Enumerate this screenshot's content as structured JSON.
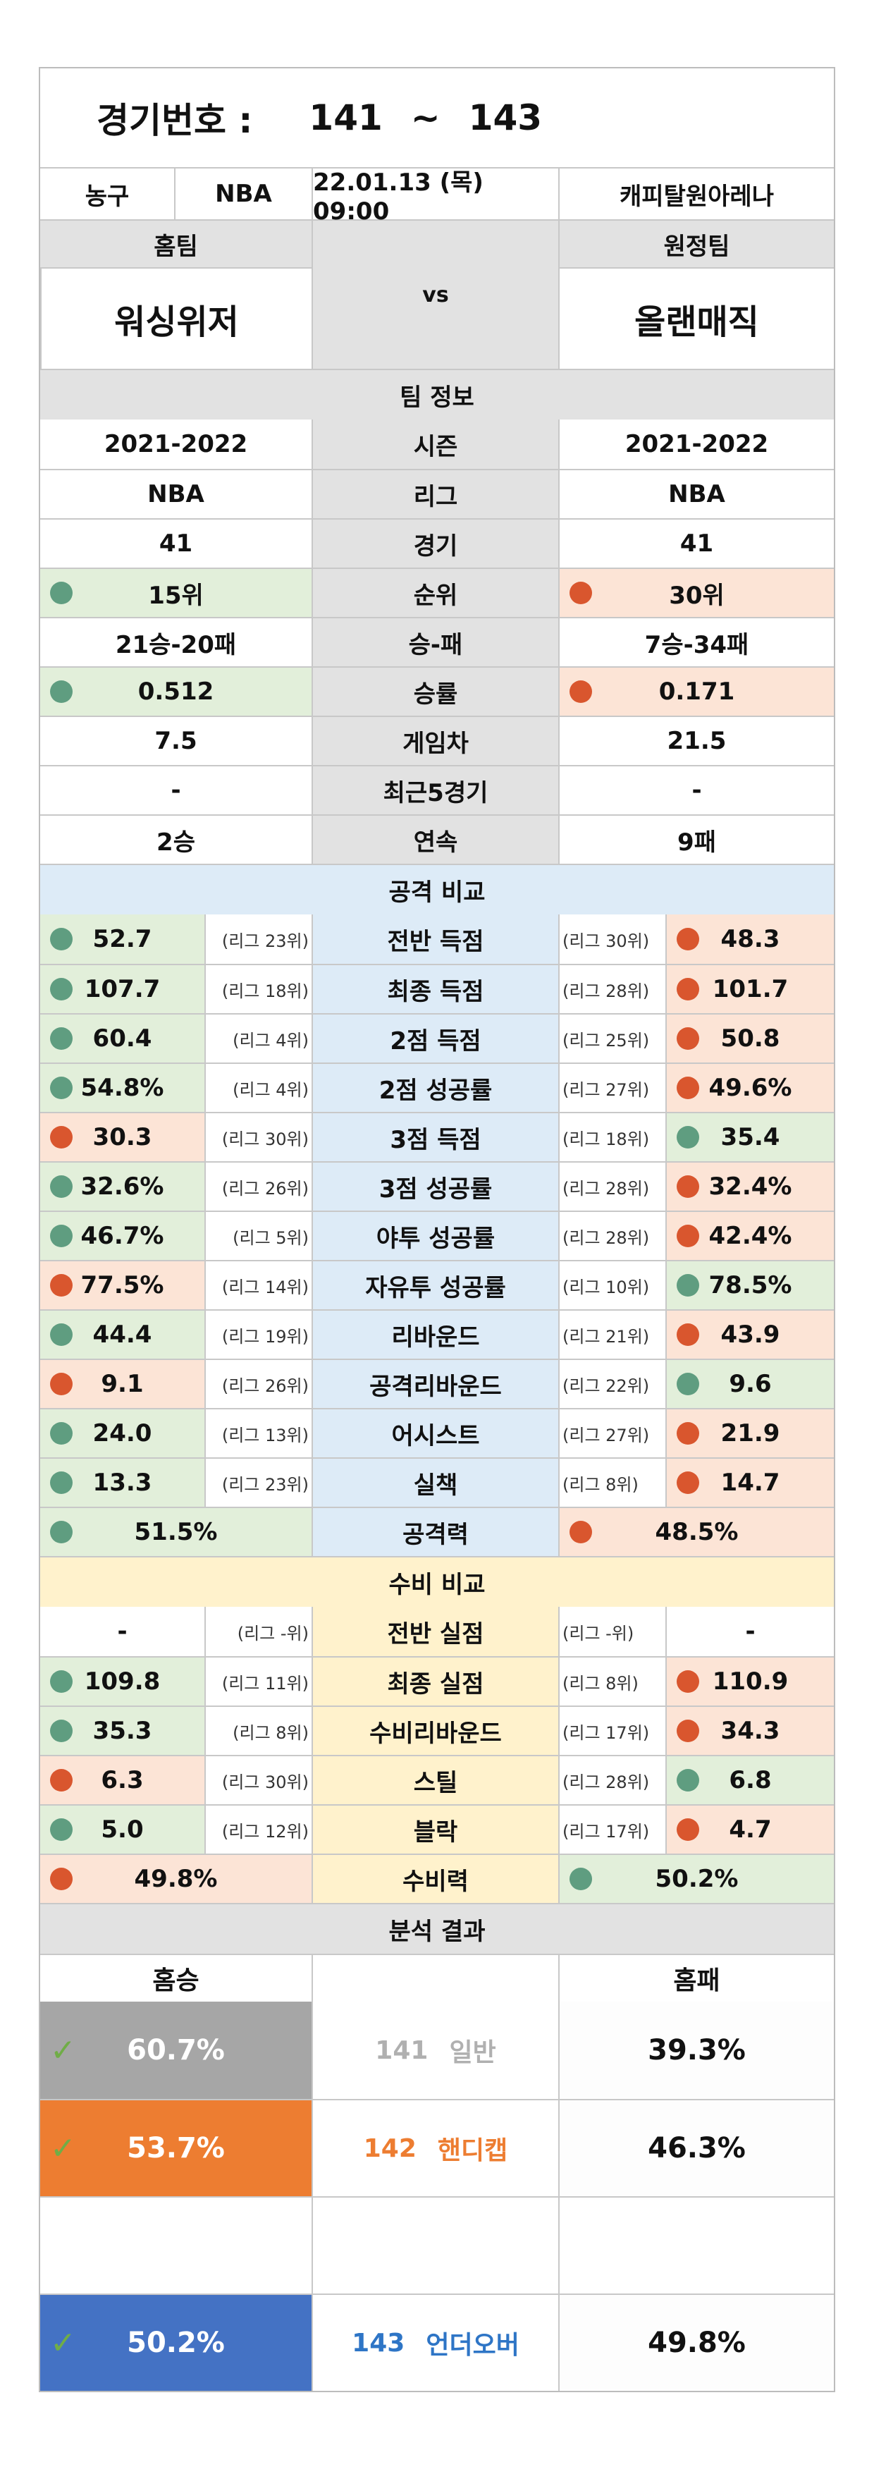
{
  "header": {
    "label": "경기번호 :",
    "from": "141",
    "tilde": "~",
    "to": "143"
  },
  "info": {
    "sport": "농구",
    "league": "NBA",
    "datetime": "22.01.13 (목) 09:00",
    "venue": "캐피탈원아레나"
  },
  "teams": {
    "home_label": "홈팀",
    "away_label": "원정팀",
    "home": "워싱위저",
    "away": "올랜매직",
    "vs": "vs"
  },
  "team_info": {
    "title": "팀 정보",
    "rows": [
      {
        "label": "시즌",
        "home": "2021-2022",
        "away": "2021-2022",
        "hc": "",
        "ac": ""
      },
      {
        "label": "리그",
        "home": "NBA",
        "away": "NBA",
        "hc": "",
        "ac": ""
      },
      {
        "label": "경기",
        "home": "41",
        "away": "41",
        "hc": "",
        "ac": ""
      },
      {
        "label": "순위",
        "home": "15위",
        "away": "30위",
        "hc": "green",
        "ac": "red"
      },
      {
        "label": "승-패",
        "home": "21승-20패",
        "away": "7승-34패",
        "hc": "",
        "ac": ""
      },
      {
        "label": "승률",
        "home": "0.512",
        "away": "0.171",
        "hc": "green",
        "ac": "red"
      },
      {
        "label": "게임차",
        "home": "7.5",
        "away": "21.5",
        "hc": "",
        "ac": ""
      },
      {
        "label": "최근5경기",
        "home": "-",
        "away": "-",
        "hc": "",
        "ac": ""
      },
      {
        "label": "연속",
        "home": "2승",
        "away": "9패",
        "hc": "",
        "ac": ""
      }
    ]
  },
  "attack": {
    "title": "공격 비교",
    "rows": [
      {
        "label": "전반 득점",
        "home": "52.7",
        "home_rank": "(리그 23위)",
        "away": "48.3",
        "away_rank": "(리그 30위)",
        "hc": "green",
        "ac": "red"
      },
      {
        "label": "최종 득점",
        "home": "107.7",
        "home_rank": "(리그 18위)",
        "away": "101.7",
        "away_rank": "(리그 28위)",
        "hc": "green",
        "ac": "red"
      },
      {
        "label": "2점 득점",
        "home": "60.4",
        "home_rank": "(리그 4위)",
        "away": "50.8",
        "away_rank": "(리그 25위)",
        "hc": "green",
        "ac": "red"
      },
      {
        "label": "2점 성공률",
        "home": "54.8%",
        "home_rank": "(리그 4위)",
        "away": "49.6%",
        "away_rank": "(리그 27위)",
        "hc": "green",
        "ac": "red"
      },
      {
        "label": "3점 득점",
        "home": "30.3",
        "home_rank": "(리그 30위)",
        "away": "35.4",
        "away_rank": "(리그 18위)",
        "hc": "red",
        "ac": "green"
      },
      {
        "label": "3점 성공률",
        "home": "32.6%",
        "home_rank": "(리그 26위)",
        "away": "32.4%",
        "away_rank": "(리그 28위)",
        "hc": "green",
        "ac": "red"
      },
      {
        "label": "야투 성공률",
        "home": "46.7%",
        "home_rank": "(리그 5위)",
        "away": "42.4%",
        "away_rank": "(리그 28위)",
        "hc": "green",
        "ac": "red"
      },
      {
        "label": "자유투 성공률",
        "home": "77.5%",
        "home_rank": "(리그 14위)",
        "away": "78.5%",
        "away_rank": "(리그 10위)",
        "hc": "red",
        "ac": "green"
      },
      {
        "label": "리바운드",
        "home": "44.4",
        "home_rank": "(리그 19위)",
        "away": "43.9",
        "away_rank": "(리그 21위)",
        "hc": "green",
        "ac": "red"
      },
      {
        "label": "공격리바운드",
        "home": "9.1",
        "home_rank": "(리그 26위)",
        "away": "9.6",
        "away_rank": "(리그 22위)",
        "hc": "red",
        "ac": "green"
      },
      {
        "label": "어시스트",
        "home": "24.0",
        "home_rank": "(리그 13위)",
        "away": "21.9",
        "away_rank": "(리그 27위)",
        "hc": "green",
        "ac": "red"
      },
      {
        "label": "실책",
        "home": "13.3",
        "home_rank": "(리그 23위)",
        "away": "14.7",
        "away_rank": "(리그 8위)",
        "hc": "green",
        "ac": "red"
      }
    ],
    "power": {
      "label": "공격력",
      "home": "51.5%",
      "away": "48.5%",
      "hc": "green",
      "ac": "red"
    }
  },
  "defense": {
    "title": "수비 비교",
    "rows": [
      {
        "label": "전반 실점",
        "home": "-",
        "home_rank": "(리그 -위)",
        "away": "-",
        "away_rank": "(리그 -위)",
        "hc": "",
        "ac": ""
      },
      {
        "label": "최종 실점",
        "home": "109.8",
        "home_rank": "(리그 11위)",
        "away": "110.9",
        "away_rank": "(리그 8위)",
        "hc": "green",
        "ac": "red"
      },
      {
        "label": "수비리바운드",
        "home": "35.3",
        "home_rank": "(리그 8위)",
        "away": "34.3",
        "away_rank": "(리그 17위)",
        "hc": "green",
        "ac": "red"
      },
      {
        "label": "스틸",
        "home": "6.3",
        "home_rank": "(리그 30위)",
        "away": "6.8",
        "away_rank": "(리그 28위)",
        "hc": "red",
        "ac": "green"
      },
      {
        "label": "블락",
        "home": "5.0",
        "home_rank": "(리그 12위)",
        "away": "4.7",
        "away_rank": "(리그 17위)",
        "hc": "green",
        "ac": "red"
      }
    ],
    "power": {
      "label": "수비력",
      "home": "49.8%",
      "away": "50.2%",
      "hc": "red",
      "ac": "green"
    }
  },
  "analysis": {
    "title": "분석 결과",
    "home_label": "홈승",
    "away_label": "홈패",
    "rows": [
      {
        "num": "141",
        "type": "일반",
        "home": "60.7%",
        "away": "39.3%",
        "style": "gd",
        "color": "#b0b0b0"
      },
      {
        "num": "142",
        "type": "핸디캡",
        "home": "53.7%",
        "away": "46.3%",
        "style": "or",
        "color": "#ed7d31"
      },
      {
        "num": "143",
        "type": "언더오버",
        "home": "50.2%",
        "away": "49.8%",
        "style": "bl",
        "color": "#2e75c6"
      }
    ]
  }
}
